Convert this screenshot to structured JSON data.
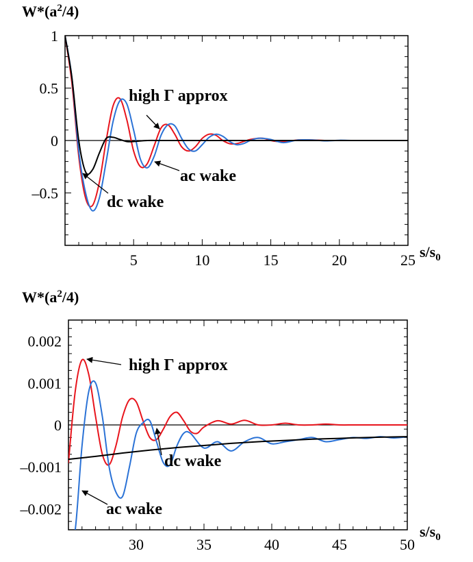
{
  "chart_data": [
    {
      "type": "line",
      "ylabel": "W*(a²/4)",
      "xlabel": "s/s0",
      "xlim": [
        0,
        25
      ],
      "ylim": [
        -1,
        1
      ],
      "x_ticks": [
        5,
        10,
        15,
        20,
        25
      ],
      "y_ticks": [
        1,
        0.5,
        0,
        -0.5
      ],
      "y_tick_labels": [
        "1",
        "0.5",
        "0",
        "–0.5"
      ],
      "x_tick_labels": [
        "5",
        "10",
        "15",
        "20",
        "25"
      ],
      "grid": false,
      "series": [
        {
          "color": "#e8141c",
          "x": [
            0,
            0.5,
            1,
            1.5,
            2,
            2.5,
            3,
            3.5,
            4,
            4.5,
            5,
            5.5,
            6,
            6.5,
            7,
            7.5,
            8,
            8.5,
            9,
            9.5,
            10,
            10.5,
            11,
            11.5,
            12,
            12.5,
            13,
            13.5,
            14,
            14.5,
            15,
            15.5,
            16,
            17,
            18,
            19,
            20,
            21,
            22,
            23,
            24,
            25
          ],
          "y": [
            1.0,
            0.55,
            -0.15,
            -0.55,
            -0.62,
            -0.4,
            0.0,
            0.33,
            0.4,
            0.2,
            -0.1,
            -0.25,
            -0.22,
            -0.05,
            0.12,
            0.15,
            0.06,
            -0.06,
            -0.1,
            -0.06,
            0.02,
            0.06,
            0.05,
            0.0,
            -0.03,
            -0.03,
            -0.01,
            0.01,
            0.02,
            0.02,
            0.0,
            -0.01,
            -0.01,
            0.005,
            0.005,
            0.0,
            0.0,
            0.0,
            0.0,
            0.0,
            0.0,
            0.0
          ]
        },
        {
          "color": "#2a72d6",
          "x": [
            0,
            0.5,
            1,
            1.5,
            2,
            2.5,
            3,
            3.5,
            4,
            4.5,
            5,
            5.5,
            6,
            6.5,
            7,
            7.5,
            8,
            8.5,
            9,
            9.5,
            10,
            10.5,
            11,
            11.5,
            12,
            12.5,
            13,
            13.5,
            14,
            14.5,
            15,
            15.5,
            16,
            17,
            18,
            19,
            20,
            21,
            22,
            23,
            24,
            25
          ],
          "y": [
            1.0,
            0.6,
            -0.1,
            -0.5,
            -0.67,
            -0.55,
            -0.2,
            0.18,
            0.38,
            0.35,
            0.1,
            -0.18,
            -0.26,
            -0.15,
            0.05,
            0.15,
            0.14,
            0.02,
            -0.08,
            -0.1,
            -0.04,
            0.03,
            0.06,
            0.04,
            -0.01,
            -0.04,
            -0.03,
            0.0,
            0.02,
            0.02,
            0.01,
            -0.01,
            -0.02,
            0.005,
            0.005,
            -0.003,
            0.002,
            0.0,
            0.0,
            0.0,
            0.0,
            0.0
          ]
        },
        {
          "color": "#000000",
          "x": [
            0,
            0.5,
            1,
            1.5,
            2,
            2.5,
            3,
            3.5,
            4,
            4.5,
            5,
            6,
            7,
            8,
            10,
            15,
            20,
            25
          ],
          "y": [
            1.0,
            0.6,
            0.0,
            -0.3,
            -0.28,
            -0.12,
            0.02,
            0.03,
            0.01,
            -0.01,
            -0.01,
            0.0,
            0.0,
            0.0,
            0.0,
            0.0,
            0.0,
            0.0
          ]
        }
      ],
      "annotations": [
        {
          "text": "high Γ approx"
        },
        {
          "text": "ac wake"
        },
        {
          "text": "dc wake"
        }
      ]
    },
    {
      "type": "line",
      "ylabel": "W*(a²/4)",
      "xlabel": "s/s0",
      "xlim": [
        25,
        50
      ],
      "ylim": [
        -0.0025,
        0.0025
      ],
      "x_ticks": [
        30,
        35,
        40,
        45,
        50
      ],
      "y_ticks": [
        0.002,
        0.001,
        0,
        -0.001,
        -0.002
      ],
      "y_tick_labels": [
        "0.002",
        "0.001",
        "0",
        "–0.001",
        "–0.002"
      ],
      "x_tick_labels": [
        "30",
        "35",
        "40",
        "45",
        "50"
      ],
      "grid": false,
      "series": [
        {
          "color": "#e8141c",
          "x": [
            25,
            25.5,
            26,
            26.5,
            27,
            27.5,
            28,
            28.5,
            29,
            29.5,
            30,
            30.5,
            31,
            31.5,
            32,
            32.5,
            33,
            33.5,
            34,
            34.5,
            35,
            36,
            37,
            38,
            39,
            40,
            41,
            42,
            43,
            44,
            45,
            46,
            47,
            48,
            49,
            50
          ],
          "y": [
            -0.0009,
            0.0008,
            0.00155,
            0.0012,
            0.0002,
            -0.0007,
            -0.00095,
            -0.0005,
            0.0002,
            0.0006,
            0.00055,
            0.0001,
            -0.0003,
            -0.00035,
            -0.0001,
            0.0002,
            0.0003,
            0.0001,
            -0.00015,
            -0.0002,
            -5e-05,
            0.0001,
            2e-05,
            0.00011,
            0.0,
            0.0,
            4e-05,
            0.0,
            0.0,
            2e-05,
            0.0,
            0.0,
            0.0,
            0.0,
            0.0,
            0.0
          ]
        },
        {
          "color": "#2a72d6",
          "x": [
            25,
            25.5,
            26,
            26.5,
            27,
            27.5,
            28,
            28.5,
            29,
            29.5,
            30,
            30.5,
            31,
            31.5,
            32,
            32.5,
            33,
            33.5,
            34,
            35,
            36,
            37,
            38,
            39,
            40,
            41,
            42,
            43,
            44,
            45,
            46,
            47,
            48,
            49,
            50
          ],
          "y": [
            -0.003,
            -0.0025,
            -0.0005,
            0.0008,
            0.001,
            0.0002,
            -0.001,
            -0.0016,
            -0.0017,
            -0.001,
            -0.0002,
            5e-05,
            0.0001,
            -0.0004,
            -0.0009,
            -0.00095,
            -0.0005,
            -0.0002,
            -0.0002,
            -0.00055,
            -0.0004,
            -0.00062,
            -0.0004,
            -0.0003,
            -0.00045,
            -0.0004,
            -0.00035,
            -0.0003,
            -0.0004,
            -0.00035,
            -0.0003,
            -0.00032,
            -0.00028,
            -0.00031,
            -0.00028
          ]
        },
        {
          "color": "#000000",
          "x": [
            25,
            27,
            29,
            31,
            33,
            35,
            37,
            39,
            41,
            43,
            45,
            47,
            50
          ],
          "y": [
            -0.00082,
            -0.00075,
            -0.00067,
            -0.0006,
            -0.00054,
            -0.00049,
            -0.00044,
            -0.0004,
            -0.00037,
            -0.00034,
            -0.00032,
            -0.0003,
            -0.00028
          ]
        }
      ],
      "annotations": [
        {
          "text": "high Γ approx"
        },
        {
          "text": "dc wake"
        },
        {
          "text": "ac wake"
        }
      ]
    }
  ]
}
